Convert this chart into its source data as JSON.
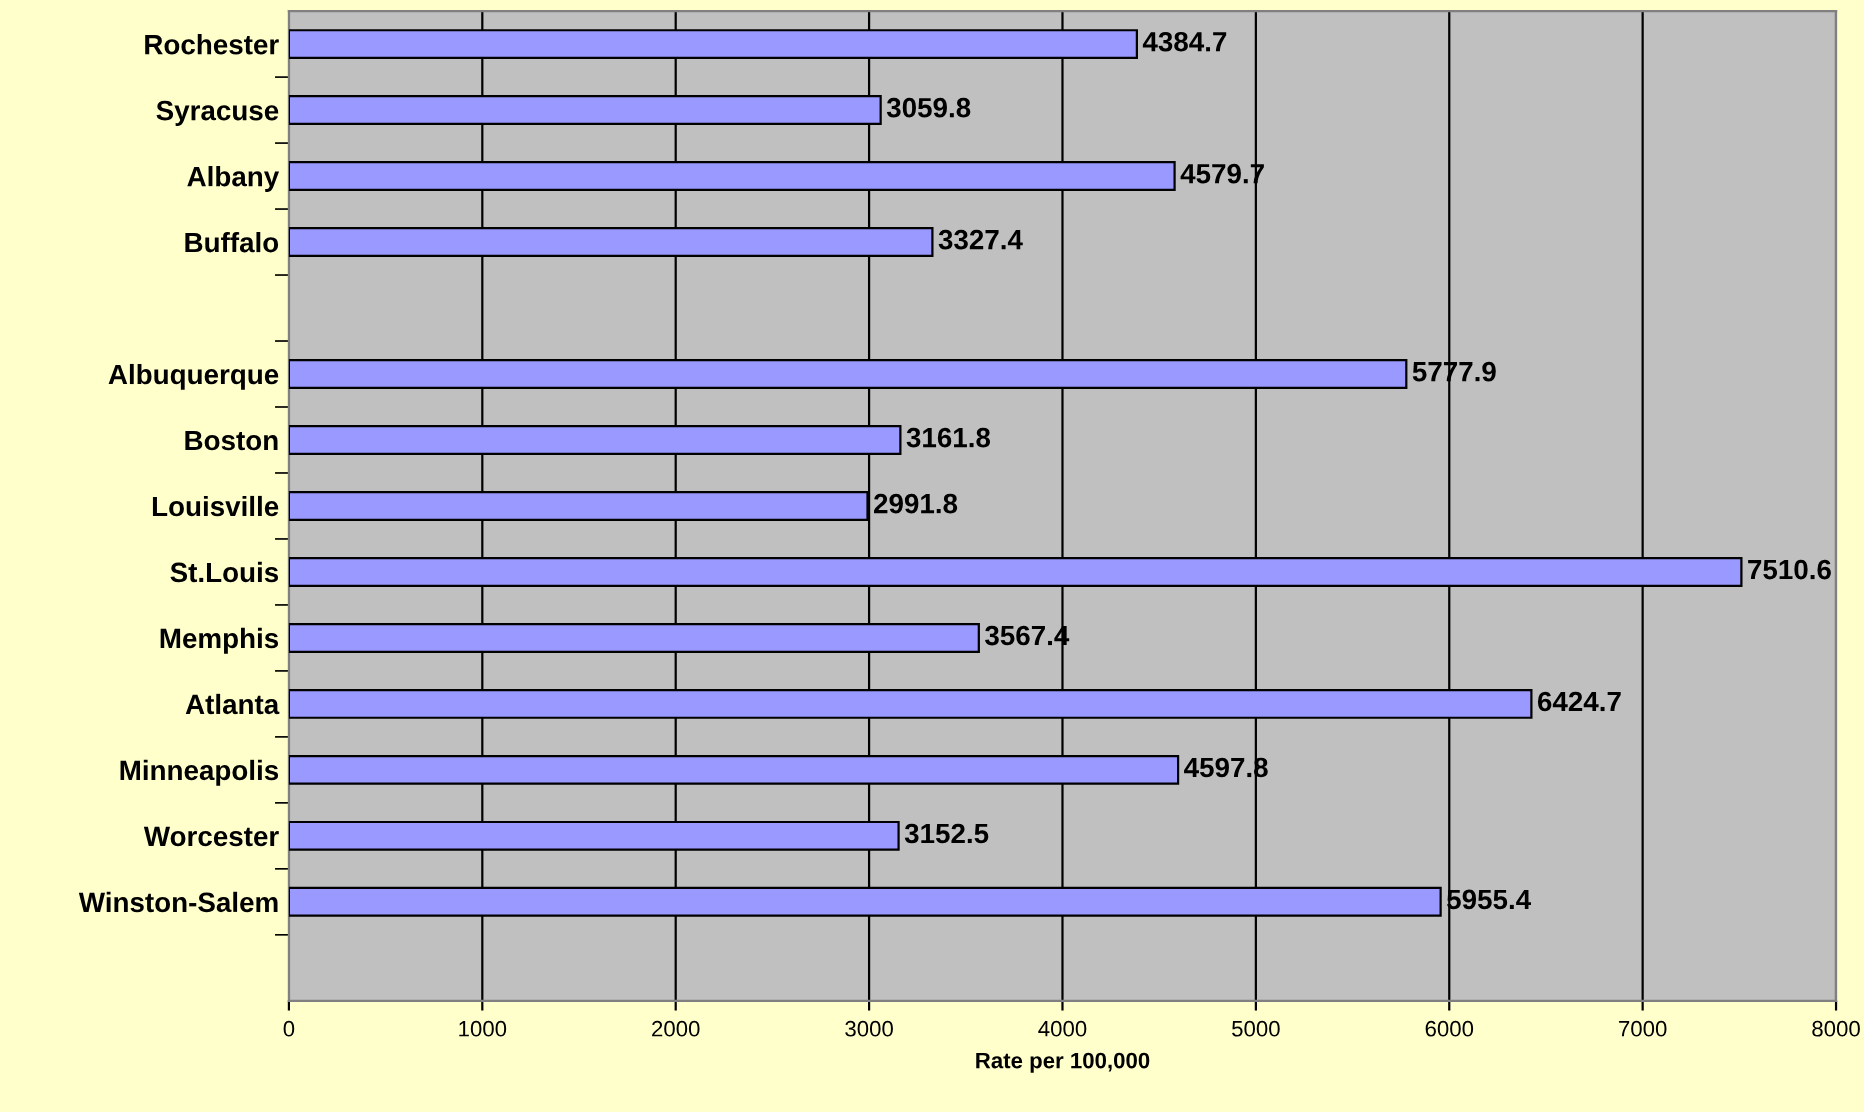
{
  "chart_data": {
    "type": "bar",
    "orientation": "horizontal",
    "xlabel": "Rate per 100,000",
    "categories": [
      "Rochester",
      "Syracuse",
      "Albany",
      "Buffalo",
      null,
      "Albuquerque",
      "Boston",
      "Louisville",
      "St.Louis",
      "Memphis",
      "Atlanta",
      "Minneapolis",
      "Worcester",
      "Winston-Salem",
      null
    ],
    "values": [
      4384.7,
      3059.8,
      4579.7,
      3327.4,
      null,
      5777.9,
      3161.8,
      2991.8,
      7510.6,
      3567.4,
      6424.7,
      4597.8,
      3152.5,
      5955.4,
      null
    ],
    "color": "#9999ff",
    "xlim": [
      0,
      8000
    ],
    "xticks": [
      0,
      1000,
      2000,
      3000,
      4000,
      5000,
      6000,
      7000,
      8000
    ],
    "grid": "x",
    "data_labels": true
  }
}
